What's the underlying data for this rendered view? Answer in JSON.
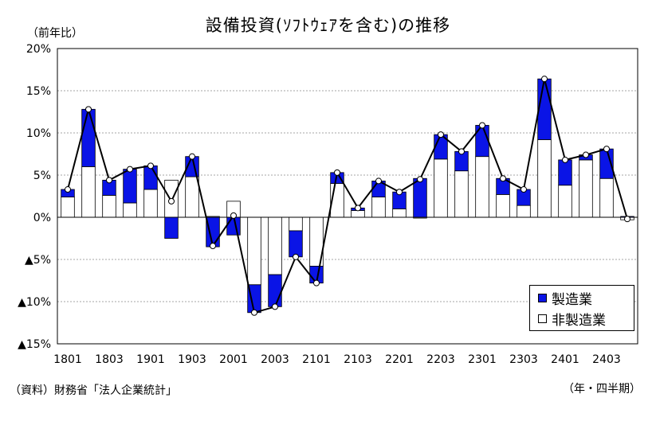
{
  "title": "設備投資(ｿﾌﾄｳｪｱを含む)の推移",
  "y_unit": "（前年比）",
  "x_unit": "（年・四半期）",
  "source": "（資料）財務省「法人企業統計」",
  "colors": {
    "manufacturing": "#0a14e6",
    "non_manufacturing": "#ffffff",
    "line": "#000000",
    "grid": "#888888"
  },
  "chart_data": {
    "type": "bar",
    "subtype": "stacked bar with total line",
    "ylim": [
      -15,
      20
    ],
    "yticks": [
      20,
      15,
      10,
      5,
      0,
      -5,
      -10,
      -15
    ],
    "ytick_labels": [
      "20%",
      "15%",
      "10%",
      "5%",
      "0%",
      "▲5%",
      "▲10%",
      "▲15%"
    ],
    "categories": [
      "1801",
      "1802",
      "1803",
      "1804",
      "1901",
      "1902",
      "1903",
      "1904",
      "2001",
      "2002",
      "2003",
      "2004",
      "2101",
      "2102",
      "2103",
      "2104",
      "2201",
      "2202",
      "2203",
      "2204",
      "2301",
      "2302",
      "2303",
      "2304",
      "2401",
      "2402",
      "2403",
      "2404"
    ],
    "xtick_labels": [
      "1801",
      "",
      "1803",
      "",
      "1901",
      "",
      "1903",
      "",
      "2001",
      "",
      "2003",
      "",
      "2101",
      "",
      "2103",
      "",
      "2201",
      "",
      "2203",
      "",
      "2301",
      "",
      "2303",
      "",
      "2401",
      "",
      "2403",
      ""
    ],
    "grid": "horizontal dashed",
    "legend_position": "bottom-right",
    "series": [
      {
        "name": "製造業",
        "values": [
          0.9,
          6.8,
          1.8,
          4.0,
          2.8,
          -2.5,
          2.4,
          -3.5,
          -2.1,
          -3.3,
          -3.8,
          -3.1,
          -2.0,
          1.3,
          0.3,
          1.9,
          2.0,
          4.6,
          2.9,
          2.3,
          3.7,
          1.9,
          1.9,
          7.2,
          3.0,
          0.6,
          3.5,
          0.1
        ]
      },
      {
        "name": "非製造業",
        "values": [
          2.4,
          6.0,
          2.6,
          1.7,
          3.3,
          4.4,
          4.8,
          0.1,
          1.9,
          -8.0,
          -6.8,
          -1.6,
          -5.8,
          4.0,
          0.8,
          2.4,
          1.0,
          -0.1,
          6.9,
          5.5,
          7.2,
          2.7,
          1.4,
          9.2,
          3.8,
          6.8,
          4.6,
          -0.3
        ]
      },
      {
        "name": "total",
        "values": [
          3.3,
          12.8,
          4.4,
          5.7,
          6.1,
          1.9,
          7.2,
          -3.4,
          0.2,
          -11.3,
          -10.6,
          -4.7,
          -7.8,
          5.3,
          1.1,
          4.3,
          3.0,
          4.5,
          9.8,
          7.8,
          10.9,
          4.6,
          3.3,
          16.4,
          6.8,
          7.4,
          8.1,
          -0.2
        ]
      }
    ]
  }
}
